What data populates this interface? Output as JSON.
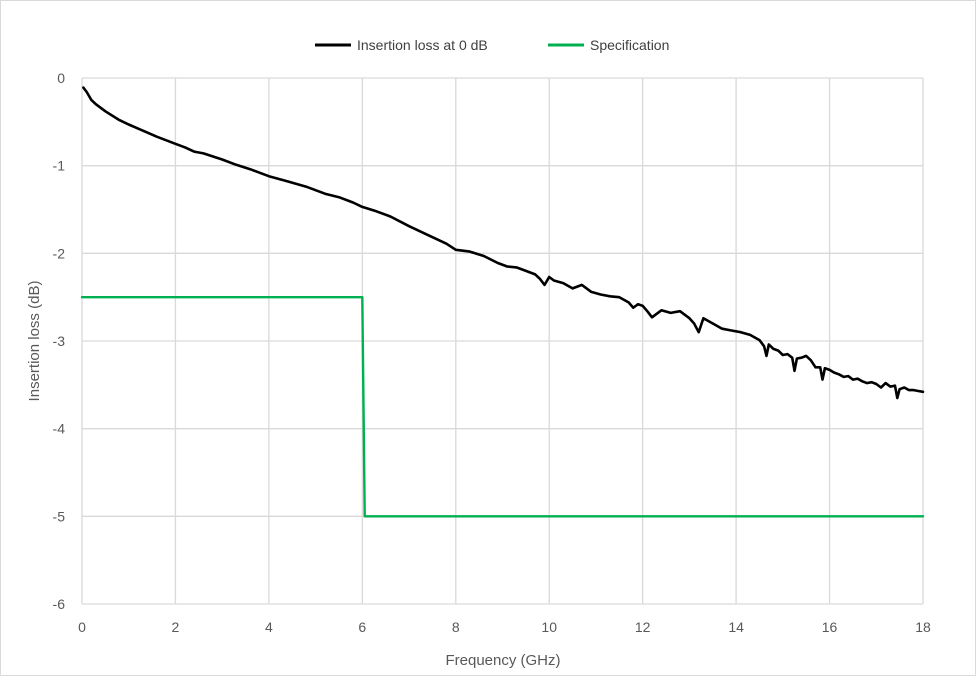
{
  "chart_data": {
    "type": "line",
    "title": "",
    "xlabel": "Frequency (GHz)",
    "ylabel": "Insertion loss (dB)",
    "xlim": [
      0,
      18
    ],
    "ylim": [
      -6,
      0
    ],
    "xticks": [
      0,
      2,
      4,
      6,
      8,
      10,
      12,
      14,
      16,
      18
    ],
    "yticks": [
      0,
      -1,
      -2,
      -3,
      -4,
      -5,
      -6
    ],
    "x_tick_labels": [
      "0",
      "2",
      "4",
      "6",
      "8",
      "10",
      "12",
      "14",
      "16",
      "18"
    ],
    "y_tick_labels": [
      "0",
      "-1",
      "-2",
      "-3",
      "-4",
      "-5",
      "-6"
    ],
    "grid": true,
    "legend_position": "top-center",
    "series": [
      {
        "name": "Insertion loss at 0 dB",
        "color": "#000000",
        "x": [
          0.03,
          0.1,
          0.2,
          0.3,
          0.5,
          0.8,
          1.0,
          1.3,
          1.6,
          2.0,
          2.2,
          2.4,
          2.6,
          3.0,
          3.3,
          3.6,
          4.0,
          4.4,
          4.8,
          5.0,
          5.2,
          5.5,
          5.8,
          6.0,
          6.3,
          6.6,
          7.0,
          7.4,
          7.8,
          8.0,
          8.3,
          8.6,
          8.9,
          9.1,
          9.3,
          9.5,
          9.7,
          9.8,
          9.9,
          10.0,
          10.1,
          10.3,
          10.5,
          10.7,
          10.9,
          11.1,
          11.3,
          11.5,
          11.7,
          11.8,
          11.9,
          12.0,
          12.1,
          12.2,
          12.4,
          12.6,
          12.8,
          13.0,
          13.1,
          13.2,
          13.3,
          13.5,
          13.7,
          13.9,
          14.1,
          14.3,
          14.5,
          14.6,
          14.65,
          14.7,
          14.8,
          14.9,
          15.0,
          15.1,
          15.2,
          15.25,
          15.3,
          15.4,
          15.5,
          15.6,
          15.7,
          15.8,
          15.85,
          15.9,
          16.0,
          16.1,
          16.2,
          16.3,
          16.4,
          16.5,
          16.6,
          16.7,
          16.8,
          16.9,
          17.0,
          17.1,
          17.2,
          17.3,
          17.4,
          17.45,
          17.5,
          17.6,
          17.7,
          17.8,
          17.9,
          18.0
        ],
        "values": [
          -0.11,
          -0.16,
          -0.25,
          -0.3,
          -0.38,
          -0.48,
          -0.53,
          -0.6,
          -0.67,
          -0.75,
          -0.79,
          -0.84,
          -0.86,
          -0.93,
          -0.99,
          -1.04,
          -1.12,
          -1.18,
          -1.24,
          -1.28,
          -1.32,
          -1.36,
          -1.42,
          -1.47,
          -1.52,
          -1.58,
          -1.69,
          -1.79,
          -1.89,
          -1.96,
          -1.98,
          -2.03,
          -2.11,
          -2.15,
          -2.16,
          -2.2,
          -2.24,
          -2.29,
          -2.36,
          -2.27,
          -2.31,
          -2.34,
          -2.4,
          -2.36,
          -2.44,
          -2.47,
          -2.49,
          -2.5,
          -2.56,
          -2.62,
          -2.58,
          -2.6,
          -2.66,
          -2.73,
          -2.65,
          -2.68,
          -2.66,
          -2.74,
          -2.8,
          -2.9,
          -2.74,
          -2.8,
          -2.86,
          -2.88,
          -2.9,
          -2.93,
          -2.99,
          -3.06,
          -3.17,
          -3.04,
          -3.09,
          -3.11,
          -3.16,
          -3.15,
          -3.19,
          -3.34,
          -3.2,
          -3.19,
          -3.17,
          -3.22,
          -3.3,
          -3.3,
          -3.44,
          -3.31,
          -3.33,
          -3.36,
          -3.38,
          -3.41,
          -3.4,
          -3.44,
          -3.43,
          -3.46,
          -3.48,
          -3.47,
          -3.49,
          -3.53,
          -3.48,
          -3.52,
          -3.51,
          -3.65,
          -3.55,
          -3.53,
          -3.56,
          -3.56,
          -3.57,
          -3.58
        ]
      },
      {
        "name": "Specification",
        "color": "#00b050",
        "x": [
          0,
          6,
          6.05,
          18
        ],
        "values": [
          -2.5,
          -2.5,
          -5,
          -5
        ]
      }
    ]
  }
}
